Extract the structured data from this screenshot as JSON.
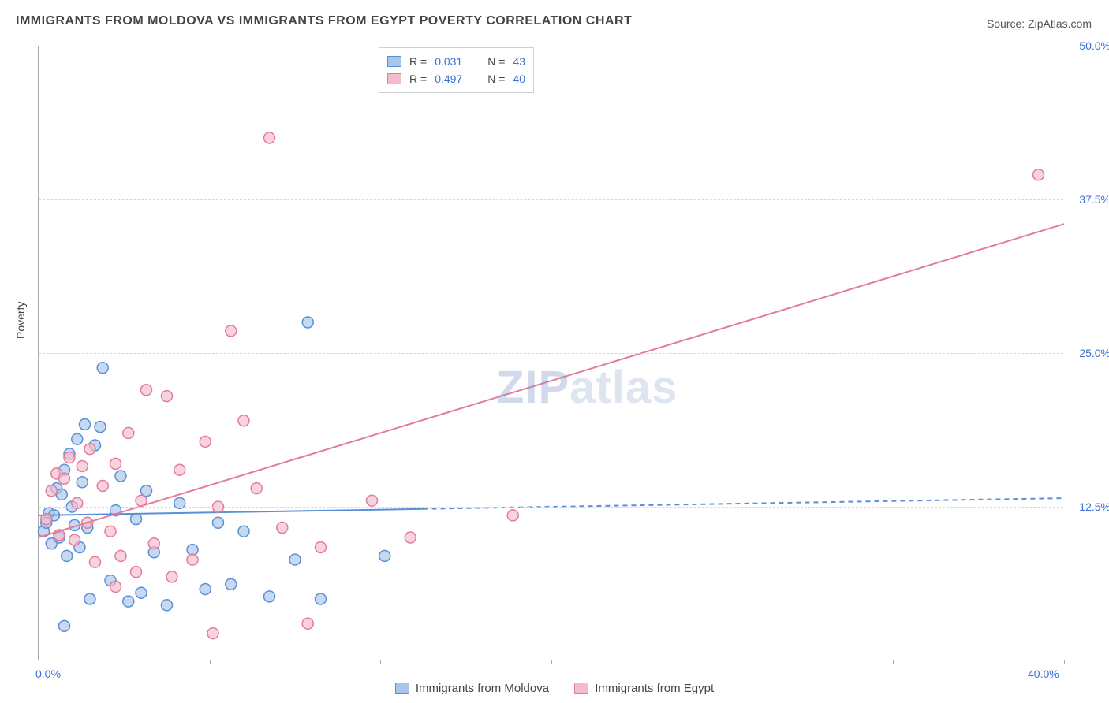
{
  "title": "IMMIGRANTS FROM MOLDOVA VS IMMIGRANTS FROM EGYPT POVERTY CORRELATION CHART",
  "source": "Source: ZipAtlas.com",
  "ylabel": "Poverty",
  "watermark_part1": "ZIP",
  "watermark_part2": "atlas",
  "chart": {
    "type": "scatter-with-regression",
    "background_color": "#ffffff",
    "grid_color": "#d8d8d8",
    "axis_color": "#aaaaaa",
    "text_color": "#444444",
    "value_color": "#3b6fd6",
    "title_fontsize": 16,
    "label_fontsize": 14,
    "xlim": [
      0,
      40
    ],
    "ylim": [
      0,
      50
    ],
    "x_ticks": [
      0,
      6.67,
      13.33,
      20,
      26.67,
      33.33,
      40
    ],
    "x_tick_labels": {
      "0": "0.0%",
      "40": "40.0%"
    },
    "y_ticks": [
      12.5,
      25.0,
      37.5,
      50.0
    ],
    "y_tick_labels": [
      "12.5%",
      "25.0%",
      "37.5%",
      "50.0%"
    ],
    "marker_radius": 7,
    "marker_stroke_width": 1.5,
    "marker_fill_opacity": 0.25,
    "line_width": 2,
    "series": [
      {
        "key": "moldova",
        "label": "Immigrants from Moldova",
        "color_stroke": "#5a8fd8",
        "color_fill": "#a8c5ea",
        "r_value": "0.031",
        "n_value": "43",
        "regression": {
          "x1": 0,
          "y1": 11.8,
          "x2": 40,
          "y2": 13.2,
          "solid_until_x": 15,
          "dashed_after": true
        },
        "points": [
          [
            0.2,
            10.5
          ],
          [
            0.3,
            11.2
          ],
          [
            0.4,
            12.0
          ],
          [
            0.5,
            9.5
          ],
          [
            0.6,
            11.8
          ],
          [
            0.7,
            14.0
          ],
          [
            0.8,
            10.0
          ],
          [
            0.9,
            13.5
          ],
          [
            1.0,
            15.5
          ],
          [
            1.1,
            8.5
          ],
          [
            1.2,
            16.8
          ],
          [
            1.3,
            12.5
          ],
          [
            1.4,
            11.0
          ],
          [
            1.5,
            18.0
          ],
          [
            1.6,
            9.2
          ],
          [
            1.7,
            14.5
          ],
          [
            1.8,
            19.2
          ],
          [
            1.9,
            10.8
          ],
          [
            2.0,
            5.0
          ],
          [
            2.2,
            17.5
          ],
          [
            2.4,
            19.0
          ],
          [
            2.5,
            23.8
          ],
          [
            2.8,
            6.5
          ],
          [
            3.0,
            12.2
          ],
          [
            3.2,
            15.0
          ],
          [
            3.5,
            4.8
          ],
          [
            3.8,
            11.5
          ],
          [
            4.0,
            5.5
          ],
          [
            4.2,
            13.8
          ],
          [
            4.5,
            8.8
          ],
          [
            5.0,
            4.5
          ],
          [
            5.5,
            12.8
          ],
          [
            6.0,
            9.0
          ],
          [
            6.5,
            5.8
          ],
          [
            7.0,
            11.2
          ],
          [
            7.5,
            6.2
          ],
          [
            8.0,
            10.5
          ],
          [
            9.0,
            5.2
          ],
          [
            10.0,
            8.2
          ],
          [
            10.5,
            27.5
          ],
          [
            11.0,
            5.0
          ],
          [
            13.5,
            8.5
          ],
          [
            1.0,
            2.8
          ]
        ]
      },
      {
        "key": "egypt",
        "label": "Immigrants from Egypt",
        "color_stroke": "#e57b9a",
        "color_fill": "#f4bccb",
        "r_value": "0.497",
        "n_value": "40",
        "regression": {
          "x1": 0,
          "y1": 10.0,
          "x2": 40,
          "y2": 35.5,
          "solid_until_x": 40,
          "dashed_after": false
        },
        "points": [
          [
            0.3,
            11.5
          ],
          [
            0.5,
            13.8
          ],
          [
            0.7,
            15.2
          ],
          [
            0.8,
            10.2
          ],
          [
            1.0,
            14.8
          ],
          [
            1.2,
            16.5
          ],
          [
            1.4,
            9.8
          ],
          [
            1.5,
            12.8
          ],
          [
            1.7,
            15.8
          ],
          [
            1.9,
            11.2
          ],
          [
            2.0,
            17.2
          ],
          [
            2.2,
            8.0
          ],
          [
            2.5,
            14.2
          ],
          [
            2.8,
            10.5
          ],
          [
            3.0,
            16.0
          ],
          [
            3.2,
            8.5
          ],
          [
            3.5,
            18.5
          ],
          [
            3.8,
            7.2
          ],
          [
            4.0,
            13.0
          ],
          [
            4.2,
            22.0
          ],
          [
            4.5,
            9.5
          ],
          [
            5.0,
            21.5
          ],
          [
            5.2,
            6.8
          ],
          [
            5.5,
            15.5
          ],
          [
            6.0,
            8.2
          ],
          [
            6.5,
            17.8
          ],
          [
            6.8,
            2.2
          ],
          [
            7.0,
            12.5
          ],
          [
            7.5,
            26.8
          ],
          [
            8.0,
            19.5
          ],
          [
            8.5,
            14.0
          ],
          [
            9.0,
            42.5
          ],
          [
            9.5,
            10.8
          ],
          [
            10.5,
            3.0
          ],
          [
            11.0,
            9.2
          ],
          [
            13.0,
            13.0
          ],
          [
            14.5,
            10.0
          ],
          [
            18.5,
            11.8
          ],
          [
            3.0,
            6.0
          ],
          [
            39.0,
            39.5
          ]
        ]
      }
    ]
  },
  "legend_top_labels": {
    "r": "R  =",
    "n": "N  ="
  },
  "legend_bottom": {
    "moldova": "Immigrants from Moldova",
    "egypt": "Immigrants from Egypt"
  }
}
